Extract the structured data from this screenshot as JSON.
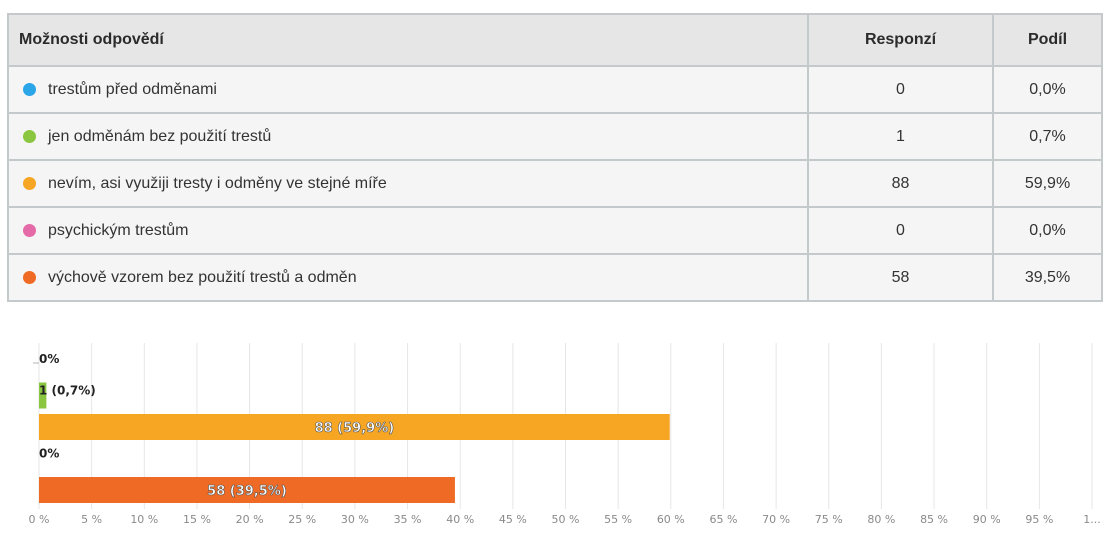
{
  "table": {
    "headers": {
      "option": "Možnosti odpovědí",
      "count": "Responzí",
      "share": "Podíl"
    },
    "rows": [
      {
        "label": "trestům před odměnami",
        "count": "0",
        "share": "0,0%",
        "color": "#2aa6e8"
      },
      {
        "label": "jen odměnám bez použití trestů",
        "count": "1",
        "share": "0,7%",
        "color": "#8ac640"
      },
      {
        "label": "nevím, asi využiji tresty i odměny ve stejné míře",
        "count": "88",
        "share": "59,9%",
        "color": "#f6a623"
      },
      {
        "label": "psychickým trestům",
        "count": "0",
        "share": "0,0%",
        "color": "#e56aa8"
      },
      {
        "label": "výchově vzorem bez použití trestů a odměn",
        "count": "58",
        "share": "39,5%",
        "color": "#ef6a24"
      }
    ]
  },
  "chart_data": {
    "type": "bar",
    "orientation": "horizontal",
    "categories": [
      "trestům před odměnami",
      "jen odměnám bez použití trestů",
      "nevím, asi využiji tresty i odměny ve stejné míře",
      "psychickým trestům",
      "výchově vzorem bez použití trestů a odměn"
    ],
    "values": [
      0.0,
      0.7,
      59.9,
      0.0,
      39.5
    ],
    "data_labels": [
      "0%",
      "1 (0,7%)",
      "88 (59,9%)",
      "0%",
      "58 (39,5%)"
    ],
    "colors": [
      "#2aa6e8",
      "#8ac640",
      "#f6a623",
      "#e56aa8",
      "#ef6a24"
    ],
    "x_ticks": [
      "0 %",
      "5 %",
      "10 %",
      "15 %",
      "20 %",
      "25 %",
      "30 %",
      "35 %",
      "40 %",
      "45 %",
      "50 %",
      "55 %",
      "60 %",
      "65 %",
      "70 %",
      "75 %",
      "80 %",
      "85 %",
      "90 %",
      "95 %",
      "1..."
    ],
    "xlim": [
      0,
      100
    ],
    "grid": true
  }
}
